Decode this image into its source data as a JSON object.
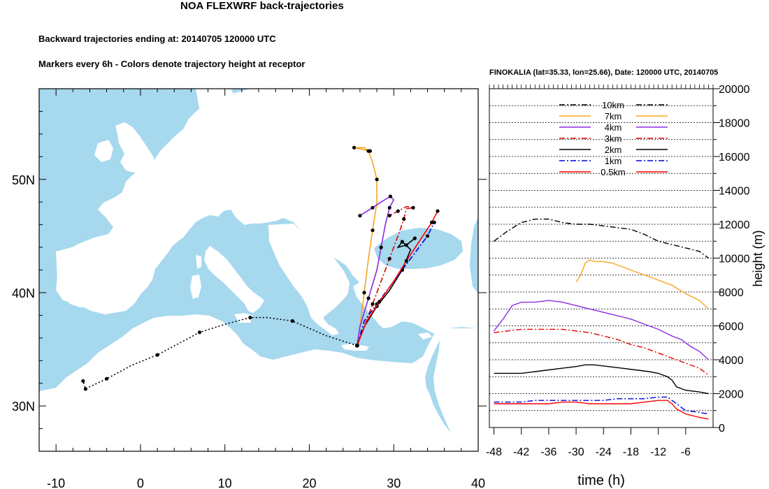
{
  "header": {
    "title": "NOA FLEXWRF back-trajectories",
    "subtitle1": "Backward trajectories ending at: 20140705  120000 UTC",
    "subtitle2": "Markers every 6h - Colors denote trajectory height at receptor"
  },
  "colors": {
    "sea": "#a6d8ee",
    "land": "#ffffff",
    "10km": "#000000",
    "7km": "#f5a623",
    "4km": "#8a2be2",
    "3km": "#e00000",
    "2km": "#000000",
    "1km": "#0000dd",
    "0.5km": "#ff0000"
  },
  "chart_data": [
    {
      "type": "map-trajectories",
      "lon_range": [
        -12,
        40
      ],
      "lat_range": [
        26,
        58
      ],
      "x_ticks": [
        "-10",
        "0",
        "10",
        "20",
        "30",
        "40"
      ],
      "y_ticks": [
        "30N",
        "40N",
        "50N"
      ],
      "receptor": {
        "lon": 25.66,
        "lat": 35.33
      },
      "series": [
        {
          "height_key": "10km",
          "style": "dotted",
          "points": [
            [
              25.66,
              35.33
            ],
            [
              22,
              36.2
            ],
            [
              18,
              37.5
            ],
            [
              15,
              37.8
            ],
            [
              13,
              37.8
            ],
            [
              10,
              37.2
            ],
            [
              7,
              36.5
            ],
            [
              4,
              35.3
            ],
            [
              2,
              34.5
            ],
            [
              -1,
              33.6
            ],
            [
              -4,
              32.4
            ],
            [
              -6,
              31.7
            ],
            [
              -6.5,
              31.5
            ],
            [
              -6.8,
              32.2
            ]
          ]
        },
        {
          "height_key": "7km",
          "style": "solid",
          "points": [
            [
              25.66,
              35.33
            ],
            [
              26,
              37
            ],
            [
              26.5,
              40
            ],
            [
              27,
              43
            ],
            [
              27.5,
              45.5
            ],
            [
              28,
              48
            ],
            [
              28,
              50
            ],
            [
              27.5,
              51.5
            ],
            [
              27,
              52.5
            ],
            [
              26.5,
              52.8
            ],
            [
              25.3,
              52.8
            ],
            [
              27.2,
              52.5
            ]
          ]
        },
        {
          "height_key": "4km",
          "style": "solid",
          "points": [
            [
              25.66,
              35.33
            ],
            [
              26,
              37
            ],
            [
              27,
              39.5
            ],
            [
              28,
              42
            ],
            [
              28.5,
              44
            ],
            [
              29,
              46
            ],
            [
              29.5,
              47.5
            ],
            [
              30,
              48.2
            ],
            [
              29.6,
              48.5
            ],
            [
              28.5,
              48
            ],
            [
              27.5,
              47.5
            ],
            [
              26,
              46.8
            ]
          ]
        },
        {
          "height_key": "3km",
          "style": "dashdot",
          "points": [
            [
              25.66,
              35.33
            ],
            [
              26.5,
              37
            ],
            [
              27.5,
              39
            ],
            [
              28.5,
              41
            ],
            [
              29.5,
              43
            ],
            [
              30.5,
              45
            ],
            [
              31.2,
              46.5
            ],
            [
              31.5,
              47.4
            ],
            [
              32.3,
              47.5
            ],
            [
              31.5,
              47.6
            ],
            [
              30.5,
              47.2
            ],
            [
              29.5,
              46.8
            ]
          ]
        },
        {
          "height_key": "2km",
          "style": "solid",
          "points": [
            [
              25.66,
              35.33
            ],
            [
              26.5,
              37
            ],
            [
              28,
              38.8
            ],
            [
              29.5,
              40.2
            ],
            [
              31,
              42
            ],
            [
              32,
              43.8
            ],
            [
              31,
              44.5
            ],
            [
              30.5,
              44
            ],
            [
              31.5,
              44.2
            ],
            [
              32.5,
              44.8
            ]
          ]
        },
        {
          "height_key": "1km",
          "style": "dashdot",
          "points": [
            [
              25.66,
              35.33
            ],
            [
              26.5,
              37.5
            ],
            [
              28,
              39
            ],
            [
              29.5,
              40.5
            ],
            [
              31,
              42
            ],
            [
              32.5,
              43.5
            ],
            [
              34,
              45
            ],
            [
              34.8,
              46.2
            ]
          ]
        },
        {
          "height_key": "0.5km",
          "style": "solid",
          "points": [
            [
              25.66,
              35.33
            ],
            [
              26.8,
              37.5
            ],
            [
              28.3,
              39.2
            ],
            [
              30,
              41
            ],
            [
              31.5,
              42.8
            ],
            [
              33,
              44.5
            ],
            [
              34.5,
              46.2
            ],
            [
              35.2,
              47.2
            ]
          ]
        }
      ]
    },
    {
      "type": "line",
      "title": "FINOKALIA (lat=35.33,  lon=25.66), Date: 120000 UTC, 20140705",
      "xlabel": "time (h)",
      "ylabel": "height (m)",
      "xlim": [
        -49,
        0
      ],
      "ylim": [
        0,
        20000
      ],
      "x_ticks": [
        "-48",
        "-42",
        "-36",
        "-30",
        "-24",
        "-18",
        "-12",
        "-6"
      ],
      "y_ticks": [
        "0",
        "2000",
        "4000",
        "6000",
        "8000",
        "10000",
        "12000",
        "14000",
        "16000",
        "18000",
        "20000"
      ],
      "legend": [
        "10km",
        "7km",
        "4km",
        "3km",
        "2km",
        "1km",
        "0.5km"
      ],
      "series": [
        {
          "name": "10km",
          "x": [
            -48,
            -45,
            -42,
            -39,
            -36,
            -33,
            -30,
            -27,
            -24,
            -21,
            -18,
            -15,
            -12,
            -9,
            -6,
            -3,
            -1
          ],
          "y": [
            11000,
            11600,
            12100,
            12300,
            12300,
            12100,
            12000,
            12000,
            11900,
            11800,
            11700,
            11400,
            11000,
            10800,
            10600,
            10400,
            10000
          ]
        },
        {
          "name": "7km",
          "x": [
            -30,
            -29,
            -28,
            -27,
            -26,
            -24,
            -22,
            -20,
            -18,
            -15,
            -12,
            -9,
            -6,
            -3,
            -1
          ],
          "y": [
            8600,
            9000,
            9700,
            9900,
            9800,
            9800,
            9700,
            9500,
            9300,
            9000,
            8700,
            8400,
            7900,
            7500,
            7000
          ]
        },
        {
          "name": "4km",
          "x": [
            -48,
            -46,
            -44,
            -42,
            -39,
            -36,
            -33,
            -30,
            -27,
            -24,
            -21,
            -18,
            -15,
            -12,
            -9,
            -7,
            -5,
            -3,
            -1
          ],
          "y": [
            5700,
            6400,
            7200,
            7400,
            7400,
            7500,
            7400,
            7200,
            7000,
            6800,
            6600,
            6400,
            6100,
            5800,
            5400,
            5200,
            4800,
            4500,
            4000
          ]
        },
        {
          "name": "3km",
          "x": [
            -48,
            -45,
            -42,
            -39,
            -36,
            -33,
            -30,
            -27,
            -24,
            -21,
            -18,
            -15,
            -12,
            -9,
            -6,
            -3,
            -1
          ],
          "y": [
            5600,
            5700,
            5800,
            5800,
            5800,
            5800,
            5700,
            5600,
            5400,
            5200,
            4900,
            4700,
            4400,
            4100,
            3800,
            3500,
            3100
          ]
        },
        {
          "name": "2km",
          "x": [
            -48,
            -45,
            -42,
            -39,
            -36,
            -33,
            -30,
            -28,
            -26,
            -23,
            -20,
            -17,
            -14,
            -12,
            -10,
            -9,
            -8,
            -6,
            -3,
            -1
          ],
          "y": [
            3200,
            3200,
            3200,
            3300,
            3400,
            3500,
            3600,
            3700,
            3700,
            3600,
            3500,
            3400,
            3300,
            3200,
            3000,
            2800,
            2400,
            2200,
            2100,
            2000
          ]
        },
        {
          "name": "1km",
          "x": [
            -48,
            -45,
            -42,
            -39,
            -36,
            -33,
            -30,
            -27,
            -24,
            -21,
            -18,
            -15,
            -12,
            -10,
            -9,
            -8,
            -6,
            -3,
            -1
          ],
          "y": [
            1500,
            1500,
            1500,
            1600,
            1600,
            1600,
            1600,
            1600,
            1600,
            1700,
            1700,
            1700,
            1800,
            1800,
            1600,
            1400,
            1000,
            900,
            800
          ]
        },
        {
          "name": "0.5km",
          "x": [
            -48,
            -45,
            -42,
            -39,
            -36,
            -33,
            -30,
            -27,
            -24,
            -21,
            -18,
            -15,
            -12,
            -10,
            -9,
            -8,
            -6,
            -3,
            -1
          ],
          "y": [
            1400,
            1400,
            1400,
            1400,
            1400,
            1500,
            1500,
            1400,
            1400,
            1400,
            1400,
            1500,
            1600,
            1600,
            1400,
            1100,
            800,
            600,
            500
          ]
        }
      ]
    }
  ]
}
